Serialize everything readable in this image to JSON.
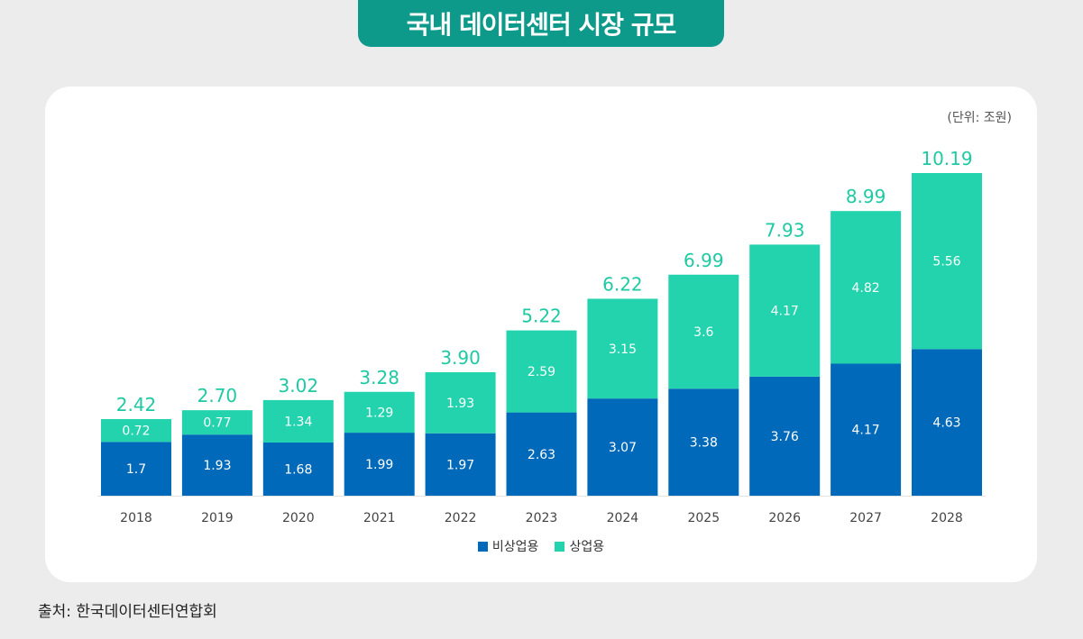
{
  "header": {
    "title": "국내 데이터센터 시장 규모"
  },
  "unit_label": "(단위: 조원)",
  "source": "출처: 한국데이터센터연합회",
  "colors": {
    "non_commercial": "#0069b9",
    "commercial": "#22d3ad",
    "total_label": "#1ec9a3"
  },
  "chart_data": {
    "type": "bar",
    "stacked": true,
    "title": "국내 데이터센터 시장 규모",
    "categories": [
      "2018",
      "2019",
      "2020",
      "2021",
      "2022",
      "2023",
      "2024",
      "2025",
      "2026",
      "2027",
      "2028"
    ],
    "series": [
      {
        "name": "비상업용",
        "values": [
          1.7,
          1.93,
          1.68,
          1.99,
          1.97,
          2.63,
          3.07,
          3.38,
          3.76,
          4.17,
          4.63
        ]
      },
      {
        "name": "상업용",
        "values": [
          0.72,
          0.77,
          1.34,
          1.29,
          1.93,
          2.59,
          3.15,
          3.6,
          4.17,
          4.82,
          5.56
        ]
      }
    ],
    "value_labels": {
      "비상업용": [
        "1.7",
        "1.93",
        "1.68",
        "1.99",
        "1.97",
        "2.63",
        "3.07",
        "3.38",
        "3.76",
        "4.17",
        "4.63"
      ],
      "상업용": [
        "0.72",
        "0.77",
        "1.34",
        "1.29",
        "1.93",
        "2.59",
        "3.15",
        "3.6",
        "4.17",
        "4.82",
        "5.56"
      ]
    },
    "totals": [
      "2.42",
      "2.70",
      "3.02",
      "3.28",
      "3.90",
      "5.22",
      "6.22",
      "6.99",
      "7.93",
      "8.99",
      "10.19"
    ],
    "ylim": [
      0,
      10.19
    ],
    "grid": false,
    "legend_position": "bottom-center"
  }
}
